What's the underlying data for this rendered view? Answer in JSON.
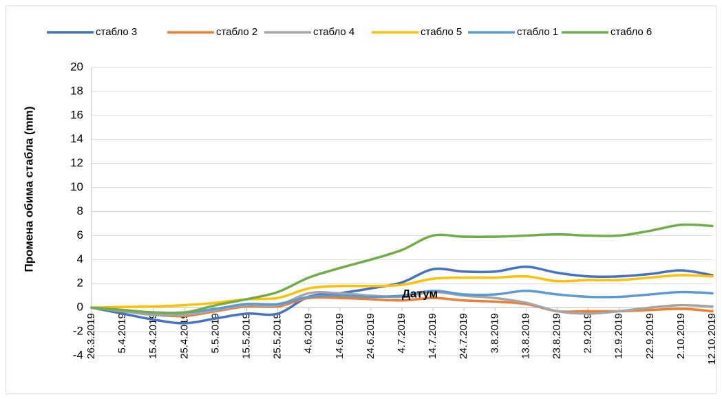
{
  "chart_data": {
    "type": "line",
    "x_label": "Датум",
    "y_label": "Промена обима стабла (mm)",
    "categories": [
      "26.3.2019",
      "5.4.2019",
      "15.4.2019",
      "25.4.2019",
      "5.5.2019",
      "15.5.2019",
      "25.5.2019",
      "4.6.2019",
      "14.6.2019",
      "24.6.2019",
      "4.7.2019",
      "14.7.2019",
      "24.7.2019",
      "3.8.2019",
      "13.8.2019",
      "23.8.2019",
      "2.9.2019",
      "12.9.2019",
      "22.9.2019",
      "2.10.2019",
      "12.10.2019"
    ],
    "series": [
      {
        "name": "стабло 3",
        "color": "#4472c4",
        "values": [
          0,
          -0.5,
          -1,
          -1.3,
          -0.9,
          -0.5,
          -0.5,
          0.9,
          1.2,
          1.6,
          2.1,
          3.2,
          3.0,
          3.0,
          3.4,
          2.9,
          2.6,
          2.6,
          2.8,
          3.1,
          2.7
        ]
      },
      {
        "name": "стабло 2",
        "color": "#ed7d31",
        "values": [
          0,
          -0.3,
          -0.6,
          -0.7,
          -0.3,
          0.1,
          0.1,
          0.8,
          0.8,
          0.7,
          0.6,
          0.8,
          0.6,
          0.5,
          0.3,
          -0.3,
          -0.3,
          -0.3,
          -0.2,
          -0.1,
          -0.3
        ]
      },
      {
        "name": "стабло 4",
        "color": "#a5a5a5",
        "values": [
          0,
          -0.3,
          -0.6,
          -0.6,
          -0.2,
          0.2,
          0.2,
          1.2,
          1.2,
          1.0,
          0.9,
          1.3,
          1.0,
          0.8,
          0.4,
          -0.3,
          -0.5,
          -0.3,
          0.0,
          0.2,
          0.1
        ]
      },
      {
        "name": "стабло 5",
        "color": "#ffc000",
        "values": [
          0,
          0.05,
          0.1,
          0.2,
          0.4,
          0.7,
          0.8,
          1.6,
          1.8,
          1.8,
          1.9,
          2.4,
          2.5,
          2.5,
          2.6,
          2.2,
          2.3,
          2.3,
          2.5,
          2.7,
          2.6
        ]
      },
      {
        "name": "стабло 1",
        "color": "#5b9bd5",
        "values": [
          0,
          -0.2,
          -0.4,
          -0.4,
          -0.1,
          0.3,
          0.3,
          0.9,
          1.0,
          0.9,
          1.0,
          1.4,
          1.1,
          1.1,
          1.4,
          1.1,
          0.9,
          0.9,
          1.1,
          1.3,
          1.2
        ]
      },
      {
        "name": "стабло 6",
        "color": "#70ad47",
        "values": [
          0,
          -0.2,
          -0.4,
          -0.4,
          0.2,
          0.7,
          1.3,
          2.5,
          3.3,
          4.0,
          4.8,
          6.0,
          5.9,
          5.9,
          6.0,
          6.1,
          6.0,
          6.0,
          6.4,
          6.9,
          6.8
        ]
      }
    ],
    "ylim": [
      -4,
      20
    ],
    "yticks": [
      -4,
      -2,
      0,
      2,
      4,
      6,
      8,
      10,
      12,
      14,
      16,
      18,
      20
    ],
    "grid": true,
    "legend": "top"
  }
}
